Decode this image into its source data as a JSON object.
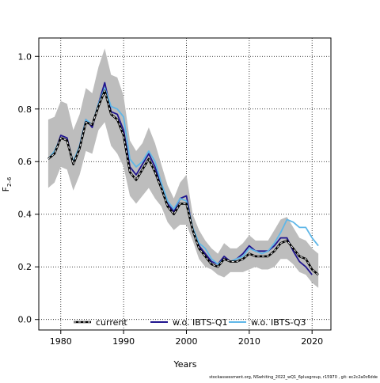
{
  "chart_data": {
    "type": "line",
    "xlabel": "Years",
    "ylabel": "F",
    "ylabel_subscript": "2–6",
    "xlim": [
      1976.5,
      2023
    ],
    "ylim": [
      -0.04,
      1.07
    ],
    "xticks": [
      1980,
      1990,
      2000,
      2010,
      2020
    ],
    "yticks": [
      0.0,
      0.2,
      0.4,
      0.6,
      0.8,
      1.0
    ],
    "ytick_labels": [
      "0.0",
      "0.2",
      "0.4",
      "0.6",
      "0.8",
      "1.0"
    ],
    "grid": true,
    "legend_position": "bottom",
    "x": [
      1978,
      1979,
      1980,
      1981,
      1982,
      1983,
      1984,
      1985,
      1986,
      1987,
      1988,
      1989,
      1990,
      1991,
      1992,
      1993,
      1994,
      1995,
      1996,
      1997,
      1998,
      1999,
      2000,
      2001,
      2002,
      2003,
      2004,
      2005,
      2006,
      2007,
      2008,
      2009,
      2010,
      2011,
      2012,
      2013,
      2014,
      2015,
      2016,
      2017,
      2018,
      2019,
      2020,
      2021
    ],
    "band": {
      "lower": [
        0.5,
        0.52,
        0.58,
        0.57,
        0.49,
        0.55,
        0.64,
        0.63,
        0.72,
        0.75,
        0.66,
        0.63,
        0.58,
        0.47,
        0.44,
        0.47,
        0.5,
        0.46,
        0.43,
        0.37,
        0.34,
        0.36,
        0.36,
        0.3,
        0.23,
        0.2,
        0.19,
        0.17,
        0.16,
        0.18,
        0.18,
        0.18,
        0.19,
        0.2,
        0.19,
        0.19,
        0.2,
        0.23,
        0.23,
        0.21,
        0.18,
        0.17,
        0.14,
        0.12
      ],
      "upper": [
        0.76,
        0.77,
        0.83,
        0.82,
        0.72,
        0.78,
        0.88,
        0.86,
        0.96,
        1.03,
        0.93,
        0.92,
        0.85,
        0.68,
        0.64,
        0.67,
        0.73,
        0.67,
        0.59,
        0.51,
        0.46,
        0.52,
        0.55,
        0.4,
        0.34,
        0.3,
        0.27,
        0.25,
        0.29,
        0.27,
        0.27,
        0.29,
        0.32,
        0.3,
        0.3,
        0.3,
        0.34,
        0.38,
        0.39,
        0.35,
        0.31,
        0.3,
        0.27,
        0.25
      ]
    },
    "series": [
      {
        "name": "current",
        "color": "#000000",
        "dashed": true,
        "values": [
          0.61,
          0.63,
          0.69,
          0.68,
          0.59,
          0.65,
          0.75,
          0.74,
          0.81,
          0.87,
          0.78,
          0.76,
          0.7,
          0.56,
          0.53,
          0.57,
          0.61,
          0.56,
          0.5,
          0.43,
          0.4,
          0.44,
          0.44,
          0.34,
          0.27,
          0.24,
          0.21,
          0.2,
          0.23,
          0.22,
          0.22,
          0.23,
          0.25,
          0.24,
          0.24,
          0.24,
          0.26,
          0.29,
          0.3,
          0.27,
          0.24,
          0.23,
          0.19,
          0.17
        ]
      },
      {
        "name": "w.o. IBTS-Q1",
        "color": "#20158f",
        "dashed": false,
        "values": [
          0.61,
          0.63,
          0.7,
          0.69,
          0.59,
          0.66,
          0.76,
          0.73,
          0.82,
          0.9,
          0.79,
          0.78,
          0.72,
          0.58,
          0.55,
          0.59,
          0.63,
          0.58,
          0.51,
          0.44,
          0.41,
          0.46,
          0.47,
          0.34,
          0.28,
          0.25,
          0.22,
          0.21,
          0.24,
          0.22,
          0.23,
          0.25,
          0.28,
          0.26,
          0.26,
          0.26,
          0.28,
          0.31,
          0.31,
          0.26,
          0.22,
          0.2,
          0.17,
          null
        ]
      },
      {
        "name": "w.o. IBTS-Q3",
        "color": "#5fb7e8",
        "dashed": false,
        "values": [
          0.61,
          0.64,
          0.69,
          0.68,
          0.6,
          0.66,
          0.76,
          0.74,
          0.82,
          0.88,
          0.81,
          0.8,
          0.77,
          0.61,
          0.58,
          0.6,
          0.64,
          0.6,
          0.52,
          0.45,
          0.42,
          0.46,
          0.45,
          0.35,
          0.29,
          0.27,
          0.23,
          0.21,
          0.23,
          0.22,
          0.23,
          0.24,
          0.27,
          0.26,
          0.25,
          0.26,
          0.29,
          0.33,
          0.38,
          0.37,
          0.35,
          0.35,
          0.31,
          0.28
        ]
      }
    ]
  },
  "footer": {
    "credit": "stockassessment.org, NSwhiting_2022_wQ1_6plusgroup, r15970 , git: ec2c2a0c6dde"
  }
}
